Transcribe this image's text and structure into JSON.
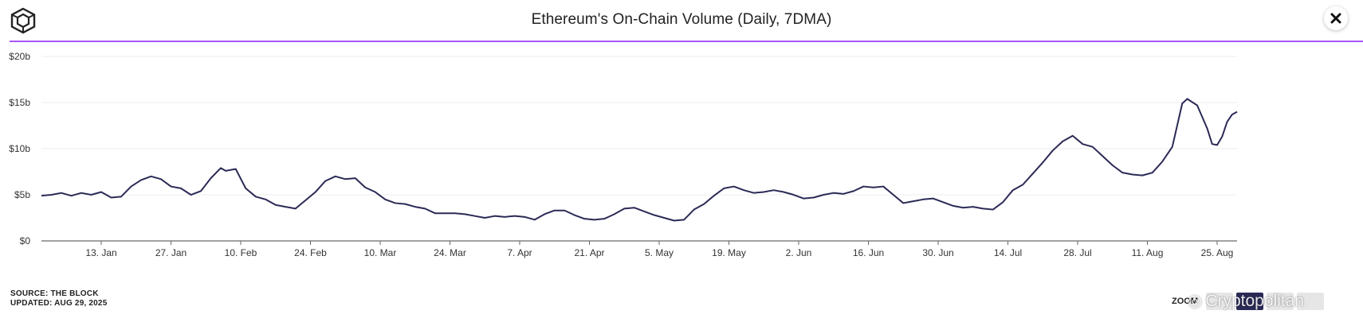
{
  "header": {
    "title": "Ethereum's On-Chain Volume (Daily, 7DMA)",
    "logo_icon": "the-block-cube-logo",
    "close_icon": "close-icon"
  },
  "footer": {
    "source": "SOURCE: THE BLOCK",
    "updated": "UPDATED: AUG 29, 2025",
    "zoom_label": "ZOOM",
    "watermark": "Cryptopolitan"
  },
  "colors": {
    "line": "#2b2a56",
    "accent_rule": "#a855f7",
    "grid": "#ececec"
  },
  "chart_data": {
    "type": "line",
    "title": "Ethereum's On-Chain Volume (Daily, 7DMA)",
    "grid": true,
    "legend": "none",
    "x_range": [
      "2025-01-01",
      "2025-08-29"
    ],
    "ylim": [
      0,
      20
    ],
    "y_ticks": [
      {
        "value": 0,
        "label": "$0"
      },
      {
        "value": 5,
        "label": "$5b"
      },
      {
        "value": 10,
        "label": "$10b"
      },
      {
        "value": 15,
        "label": "$15b"
      },
      {
        "value": 20,
        "label": "$20b"
      }
    ],
    "x_ticks": [
      {
        "date": "2025-01-13",
        "label": "13. Jan"
      },
      {
        "date": "2025-01-27",
        "label": "27. Jan"
      },
      {
        "date": "2025-02-10",
        "label": "10. Feb"
      },
      {
        "date": "2025-02-24",
        "label": "24. Feb"
      },
      {
        "date": "2025-03-10",
        "label": "10. Mar"
      },
      {
        "date": "2025-03-24",
        "label": "24. Mar"
      },
      {
        "date": "2025-04-07",
        "label": "7. Apr"
      },
      {
        "date": "2025-04-21",
        "label": "21. Apr"
      },
      {
        "date": "2025-05-05",
        "label": "5. May"
      },
      {
        "date": "2025-05-19",
        "label": "19. May"
      },
      {
        "date": "2025-06-02",
        "label": "2. Jun"
      },
      {
        "date": "2025-06-16",
        "label": "16. Jun"
      },
      {
        "date": "2025-06-30",
        "label": "30. Jun"
      },
      {
        "date": "2025-07-14",
        "label": "14. Jul"
      },
      {
        "date": "2025-07-28",
        "label": "28. Jul"
      },
      {
        "date": "2025-08-11",
        "label": "11. Aug"
      },
      {
        "date": "2025-08-25",
        "label": "25. Aug"
      }
    ],
    "series": [
      {
        "unit": "USD billions",
        "points": [
          [
            "2025-01-01",
            4.9
          ],
          [
            "2025-01-03",
            5.0
          ],
          [
            "2025-01-05",
            5.2
          ],
          [
            "2025-01-07",
            4.9
          ],
          [
            "2025-01-09",
            5.2
          ],
          [
            "2025-01-11",
            5.0
          ],
          [
            "2025-01-13",
            5.3
          ],
          [
            "2025-01-15",
            4.7
          ],
          [
            "2025-01-17",
            4.8
          ],
          [
            "2025-01-19",
            5.9
          ],
          [
            "2025-01-21",
            6.6
          ],
          [
            "2025-01-23",
            7.0
          ],
          [
            "2025-01-25",
            6.7
          ],
          [
            "2025-01-27",
            5.9
          ],
          [
            "2025-01-29",
            5.7
          ],
          [
            "2025-01-31",
            5.0
          ],
          [
            "2025-02-02",
            5.4
          ],
          [
            "2025-02-04",
            6.8
          ],
          [
            "2025-02-06",
            7.9
          ],
          [
            "2025-02-07",
            7.6
          ],
          [
            "2025-02-09",
            7.8
          ],
          [
            "2025-02-11",
            5.7
          ],
          [
            "2025-02-13",
            4.8
          ],
          [
            "2025-02-15",
            4.5
          ],
          [
            "2025-02-17",
            3.9
          ],
          [
            "2025-02-19",
            3.7
          ],
          [
            "2025-02-21",
            3.5
          ],
          [
            "2025-02-23",
            4.4
          ],
          [
            "2025-02-25",
            5.3
          ],
          [
            "2025-02-27",
            6.5
          ],
          [
            "2025-03-01",
            7.0
          ],
          [
            "2025-03-03",
            6.7
          ],
          [
            "2025-03-05",
            6.8
          ],
          [
            "2025-03-07",
            5.8
          ],
          [
            "2025-03-09",
            5.3
          ],
          [
            "2025-03-11",
            4.5
          ],
          [
            "2025-03-13",
            4.1
          ],
          [
            "2025-03-15",
            4.0
          ],
          [
            "2025-03-17",
            3.7
          ],
          [
            "2025-03-19",
            3.5
          ],
          [
            "2025-03-21",
            3.0
          ],
          [
            "2025-03-23",
            3.0
          ],
          [
            "2025-03-25",
            3.0
          ],
          [
            "2025-03-27",
            2.9
          ],
          [
            "2025-03-29",
            2.7
          ],
          [
            "2025-03-31",
            2.5
          ],
          [
            "2025-04-02",
            2.7
          ],
          [
            "2025-04-04",
            2.6
          ],
          [
            "2025-04-06",
            2.7
          ],
          [
            "2025-04-08",
            2.6
          ],
          [
            "2025-04-10",
            2.3
          ],
          [
            "2025-04-12",
            2.9
          ],
          [
            "2025-04-14",
            3.3
          ],
          [
            "2025-04-16",
            3.3
          ],
          [
            "2025-04-18",
            2.8
          ],
          [
            "2025-04-20",
            2.4
          ],
          [
            "2025-04-22",
            2.3
          ],
          [
            "2025-04-24",
            2.4
          ],
          [
            "2025-04-26",
            2.9
          ],
          [
            "2025-04-28",
            3.5
          ],
          [
            "2025-04-30",
            3.6
          ],
          [
            "2025-05-02",
            3.2
          ],
          [
            "2025-05-04",
            2.8
          ],
          [
            "2025-05-06",
            2.5
          ],
          [
            "2025-05-08",
            2.2
          ],
          [
            "2025-05-10",
            2.3
          ],
          [
            "2025-05-12",
            3.4
          ],
          [
            "2025-05-14",
            4.0
          ],
          [
            "2025-05-16",
            4.9
          ],
          [
            "2025-05-18",
            5.7
          ],
          [
            "2025-05-20",
            5.9
          ],
          [
            "2025-05-22",
            5.5
          ],
          [
            "2025-05-24",
            5.2
          ],
          [
            "2025-05-26",
            5.3
          ],
          [
            "2025-05-28",
            5.5
          ],
          [
            "2025-05-30",
            5.3
          ],
          [
            "2025-06-01",
            5.0
          ],
          [
            "2025-06-03",
            4.6
          ],
          [
            "2025-06-05",
            4.7
          ],
          [
            "2025-06-07",
            5.0
          ],
          [
            "2025-06-09",
            5.2
          ],
          [
            "2025-06-11",
            5.1
          ],
          [
            "2025-06-13",
            5.4
          ],
          [
            "2025-06-15",
            5.9
          ],
          [
            "2025-06-17",
            5.8
          ],
          [
            "2025-06-19",
            5.9
          ],
          [
            "2025-06-21",
            5.0
          ],
          [
            "2025-06-23",
            4.1
          ],
          [
            "2025-06-25",
            4.3
          ],
          [
            "2025-06-27",
            4.5
          ],
          [
            "2025-06-29",
            4.6
          ],
          [
            "2025-07-01",
            4.2
          ],
          [
            "2025-07-03",
            3.8
          ],
          [
            "2025-07-05",
            3.6
          ],
          [
            "2025-07-07",
            3.7
          ],
          [
            "2025-07-09",
            3.5
          ],
          [
            "2025-07-11",
            3.4
          ],
          [
            "2025-07-13",
            4.2
          ],
          [
            "2025-07-15",
            5.5
          ],
          [
            "2025-07-17",
            6.1
          ],
          [
            "2025-07-19",
            7.3
          ],
          [
            "2025-07-21",
            8.5
          ],
          [
            "2025-07-23",
            9.8
          ],
          [
            "2025-07-25",
            10.8
          ],
          [
            "2025-07-27",
            11.4
          ],
          [
            "2025-07-29",
            10.5
          ],
          [
            "2025-07-31",
            10.2
          ],
          [
            "2025-08-02",
            9.2
          ],
          [
            "2025-08-04",
            8.2
          ],
          [
            "2025-08-06",
            7.4
          ],
          [
            "2025-08-08",
            7.2
          ],
          [
            "2025-08-10",
            7.1
          ],
          [
            "2025-08-12",
            7.4
          ],
          [
            "2025-08-14",
            8.6
          ],
          [
            "2025-08-16",
            10.2
          ],
          [
            "2025-08-18",
            14.9
          ],
          [
            "2025-08-19",
            15.4
          ],
          [
            "2025-08-21",
            14.7
          ],
          [
            "2025-08-23",
            12.2
          ],
          [
            "2025-08-24",
            10.5
          ],
          [
            "2025-08-25",
            10.4
          ],
          [
            "2025-08-26",
            11.3
          ],
          [
            "2025-08-27",
            12.9
          ],
          [
            "2025-08-28",
            13.7
          ],
          [
            "2025-08-29",
            14.0
          ]
        ]
      }
    ]
  }
}
